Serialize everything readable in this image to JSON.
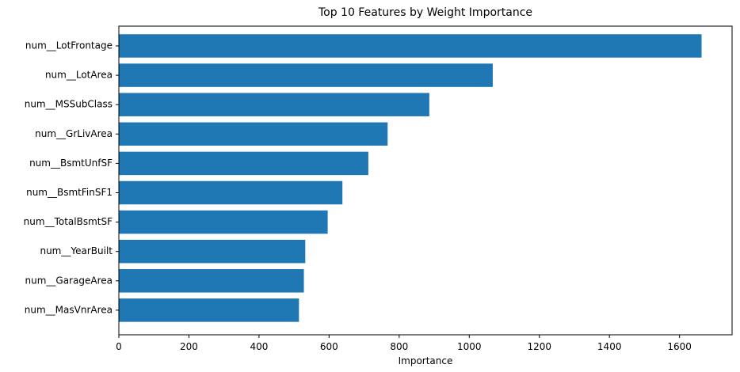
{
  "chart_data": {
    "type": "bar",
    "orientation": "horizontal",
    "title": "Top 10 Features by Weight Importance",
    "xlabel": "Importance",
    "ylabel": "",
    "xlim": [
      0,
      1750
    ],
    "xticks": [
      0,
      200,
      400,
      600,
      800,
      1000,
      1200,
      1400,
      1600
    ],
    "categories": [
      "num__LotFrontage",
      "num__LotArea",
      "num__MSSubClass",
      "num__GrLivArea",
      "num__BsmtUnfSF",
      "num__BsmtFinSF1",
      "num__TotalBsmtSF",
      "num__YearBuilt",
      "num__GarageArea",
      "num__MasVnrArea"
    ],
    "values": [
      1663,
      1067,
      886,
      767,
      712,
      638,
      596,
      532,
      528,
      514
    ],
    "bar_color": "#1f77b4",
    "grid": false,
    "legend": "none"
  }
}
